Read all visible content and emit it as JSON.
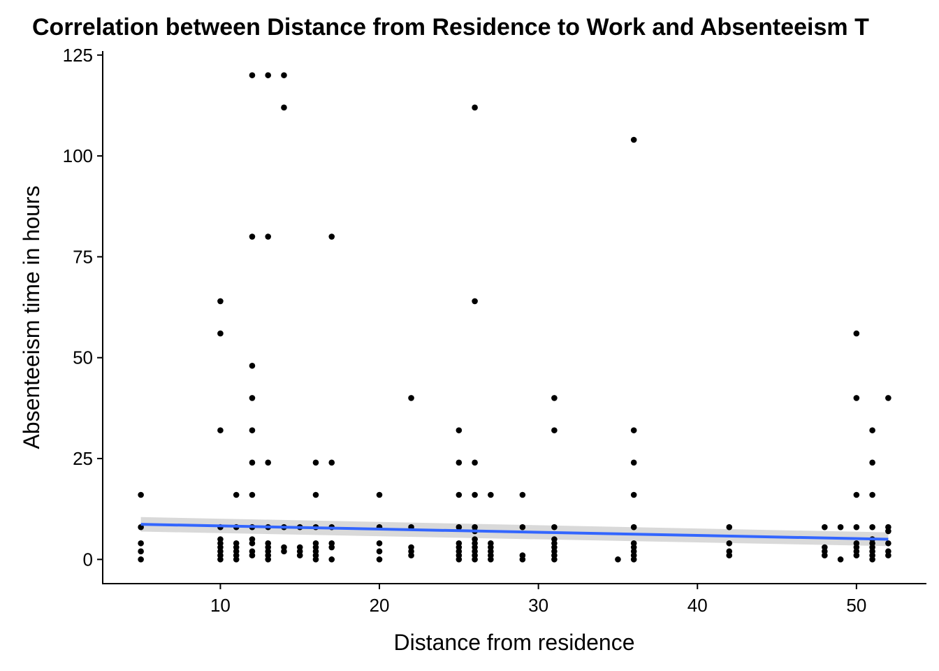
{
  "chart_data": {
    "type": "scatter",
    "title": "Correlation between Distance from Residence to Work and Absenteeism T",
    "xlabel": "Distance from residence",
    "ylabel": "Absenteeism time in hours",
    "xlim": [
      2.6,
      54.4
    ],
    "ylim": [
      -6,
      126
    ],
    "x_ticks": [
      10,
      20,
      30,
      40,
      50
    ],
    "y_ticks": [
      0,
      25,
      50,
      75,
      100,
      125
    ],
    "grid": false,
    "legend": "none",
    "point_color": "#000000",
    "trend_color": "#3366ff",
    "band_color": "#cccccc",
    "points": [
      [
        5,
        0
      ],
      [
        5,
        2
      ],
      [
        5,
        4
      ],
      [
        5,
        8
      ],
      [
        5,
        16
      ],
      [
        10,
        0
      ],
      [
        10,
        1
      ],
      [
        10,
        2
      ],
      [
        10,
        3
      ],
      [
        10,
        4
      ],
      [
        10,
        5
      ],
      [
        10,
        8
      ],
      [
        10,
        32
      ],
      [
        10,
        56
      ],
      [
        10,
        64
      ],
      [
        11,
        0
      ],
      [
        11,
        1
      ],
      [
        11,
        2
      ],
      [
        11,
        3
      ],
      [
        11,
        4
      ],
      [
        11,
        8
      ],
      [
        11,
        16
      ],
      [
        12,
        1
      ],
      [
        12,
        2
      ],
      [
        12,
        4
      ],
      [
        12,
        5
      ],
      [
        12,
        8
      ],
      [
        12,
        16
      ],
      [
        12,
        24
      ],
      [
        12,
        32
      ],
      [
        12,
        40
      ],
      [
        12,
        48
      ],
      [
        12,
        80
      ],
      [
        12,
        120
      ],
      [
        13,
        0
      ],
      [
        13,
        1
      ],
      [
        13,
        2
      ],
      [
        13,
        3
      ],
      [
        13,
        4
      ],
      [
        13,
        8
      ],
      [
        13,
        24
      ],
      [
        13,
        80
      ],
      [
        13,
        120
      ],
      [
        14,
        2
      ],
      [
        14,
        3
      ],
      [
        14,
        8
      ],
      [
        14,
        112
      ],
      [
        14,
        120
      ],
      [
        15,
        1
      ],
      [
        15,
        2
      ],
      [
        15,
        3
      ],
      [
        15,
        8
      ],
      [
        16,
        0
      ],
      [
        16,
        1
      ],
      [
        16,
        2
      ],
      [
        16,
        3
      ],
      [
        16,
        4
      ],
      [
        16,
        8
      ],
      [
        16,
        16
      ],
      [
        16,
        24
      ],
      [
        17,
        0
      ],
      [
        17,
        3
      ],
      [
        17,
        4
      ],
      [
        17,
        8
      ],
      [
        17,
        24
      ],
      [
        17,
        80
      ],
      [
        20,
        0
      ],
      [
        20,
        2
      ],
      [
        20,
        4
      ],
      [
        20,
        8
      ],
      [
        20,
        16
      ],
      [
        22,
        1
      ],
      [
        22,
        2
      ],
      [
        22,
        3
      ],
      [
        22,
        8
      ],
      [
        22,
        40
      ],
      [
        25,
        0
      ],
      [
        25,
        1
      ],
      [
        25,
        2
      ],
      [
        25,
        3
      ],
      [
        25,
        4
      ],
      [
        25,
        8
      ],
      [
        25,
        16
      ],
      [
        25,
        24
      ],
      [
        25,
        32
      ],
      [
        26,
        0
      ],
      [
        26,
        1
      ],
      [
        26,
        2
      ],
      [
        26,
        3
      ],
      [
        26,
        4
      ],
      [
        26,
        5
      ],
      [
        26,
        7
      ],
      [
        26,
        8
      ],
      [
        26,
        16
      ],
      [
        26,
        24
      ],
      [
        26,
        64
      ],
      [
        26,
        112
      ],
      [
        27,
        0
      ],
      [
        27,
        1
      ],
      [
        27,
        2
      ],
      [
        27,
        3
      ],
      [
        27,
        4
      ],
      [
        27,
        16
      ],
      [
        29,
        0
      ],
      [
        29,
        1
      ],
      [
        29,
        8
      ],
      [
        29,
        16
      ],
      [
        31,
        0
      ],
      [
        31,
        1
      ],
      [
        31,
        2
      ],
      [
        31,
        3
      ],
      [
        31,
        4
      ],
      [
        31,
        5
      ],
      [
        31,
        8
      ],
      [
        31,
        32
      ],
      [
        31,
        40
      ],
      [
        35,
        0
      ],
      [
        36,
        0
      ],
      [
        36,
        1
      ],
      [
        36,
        2
      ],
      [
        36,
        3
      ],
      [
        36,
        4
      ],
      [
        36,
        8
      ],
      [
        36,
        16
      ],
      [
        36,
        24
      ],
      [
        36,
        32
      ],
      [
        36,
        104
      ],
      [
        42,
        1
      ],
      [
        42,
        2
      ],
      [
        42,
        4
      ],
      [
        42,
        8
      ],
      [
        48,
        1
      ],
      [
        48,
        2
      ],
      [
        48,
        3
      ],
      [
        48,
        8
      ],
      [
        49,
        0
      ],
      [
        49,
        8
      ],
      [
        50,
        1
      ],
      [
        50,
        2
      ],
      [
        50,
        3
      ],
      [
        50,
        4
      ],
      [
        50,
        8
      ],
      [
        50,
        16
      ],
      [
        50,
        40
      ],
      [
        50,
        56
      ],
      [
        51,
        0
      ],
      [
        51,
        1
      ],
      [
        51,
        2
      ],
      [
        51,
        3
      ],
      [
        51,
        4
      ],
      [
        51,
        5
      ],
      [
        51,
        8
      ],
      [
        51,
        16
      ],
      [
        51,
        24
      ],
      [
        51,
        32
      ],
      [
        52,
        1
      ],
      [
        52,
        2
      ],
      [
        52,
        4
      ],
      [
        52,
        7
      ],
      [
        52,
        8
      ],
      [
        52,
        40
      ]
    ],
    "trend": {
      "method": "linear",
      "x": [
        5,
        52
      ],
      "y": [
        8.7,
        5.0
      ],
      "ci_lower": [
        6.9,
        3.3
      ],
      "ci_upper": [
        10.5,
        6.7
      ]
    }
  }
}
